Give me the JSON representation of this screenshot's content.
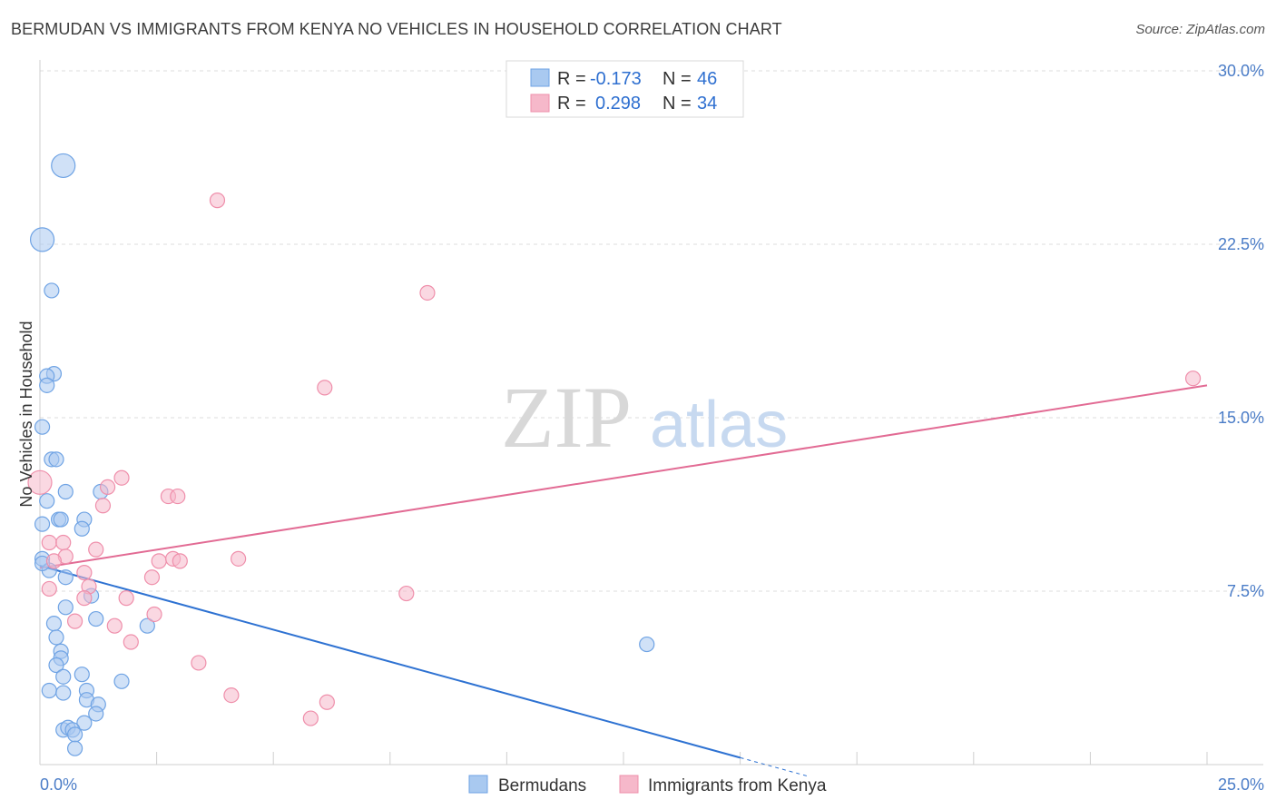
{
  "header": {
    "title": "BERMUDAN VS IMMIGRANTS FROM KENYA NO VEHICLES IN HOUSEHOLD CORRELATION CHART",
    "source": "Source: ZipAtlas.com"
  },
  "watermark": {
    "zip": "ZIP",
    "atlas": "atlas"
  },
  "legend": {
    "rows": [
      {
        "r_label": "R =",
        "r_value": "-0.173",
        "n_label": "N =",
        "n_value": "46",
        "color": "#a9c9f0"
      },
      {
        "r_label": "R =",
        "r_value": "0.298",
        "n_label": "N =",
        "n_value": "34",
        "color": "#f6b8ca"
      }
    ]
  },
  "bottom_legend": {
    "items": [
      "Bermudans",
      "Immigrants from Kenya"
    ]
  },
  "chart_data": {
    "type": "scatter",
    "title": "BERMUDAN VS IMMIGRANTS FROM KENYA NO VEHICLES IN HOUSEHOLD CORRELATION CHART",
    "ylabel": "No Vehicles in Household",
    "xlabel": "",
    "xlim": [
      0,
      25
    ],
    "ylim": [
      0,
      30
    ],
    "x_tick_labels": [
      "0.0%",
      "25.0%"
    ],
    "y_ticks": [
      7.5,
      15.0,
      22.5,
      30.0
    ],
    "y_tick_labels": [
      "7.5%",
      "15.0%",
      "22.5%",
      "30.0%"
    ],
    "grid": true,
    "legend_placement": "top-center",
    "series": [
      {
        "name": "Bermudans",
        "color": "#6fa3e4",
        "fill": "#a9c9f0",
        "line_color": "#2e72d2",
        "trend": {
          "x": [
            0,
            15.0
          ],
          "y": [
            8.6,
            0.3
          ]
        },
        "points": [
          [
            0.5,
            25.9
          ],
          [
            0.05,
            22.7
          ],
          [
            0.25,
            20.5
          ],
          [
            0.3,
            16.9
          ],
          [
            0.15,
            16.8
          ],
          [
            0.15,
            16.4
          ],
          [
            0.05,
            14.6
          ],
          [
            0.25,
            13.2
          ],
          [
            0.35,
            13.2
          ],
          [
            0.15,
            11.4
          ],
          [
            0.55,
            11.8
          ],
          [
            1.3,
            11.8
          ],
          [
            0.05,
            10.4
          ],
          [
            0.4,
            10.6
          ],
          [
            0.45,
            10.6
          ],
          [
            0.95,
            10.6
          ],
          [
            0.9,
            10.2
          ],
          [
            0.05,
            8.9
          ],
          [
            0.2,
            8.4
          ],
          [
            1.1,
            7.3
          ],
          [
            0.55,
            8.1
          ],
          [
            0.55,
            6.8
          ],
          [
            1.2,
            6.3
          ],
          [
            0.3,
            6.1
          ],
          [
            2.3,
            6.0
          ],
          [
            0.35,
            5.5
          ],
          [
            0.45,
            4.9
          ],
          [
            0.45,
            4.6
          ],
          [
            0.35,
            4.3
          ],
          [
            0.5,
            3.8
          ],
          [
            0.9,
            3.9
          ],
          [
            1.75,
            3.6
          ],
          [
            0.2,
            3.2
          ],
          [
            0.5,
            3.1
          ],
          [
            1.0,
            3.2
          ],
          [
            1.0,
            2.8
          ],
          [
            1.25,
            2.6
          ],
          [
            1.2,
            2.2
          ],
          [
            0.95,
            1.8
          ],
          [
            0.5,
            1.5
          ],
          [
            0.6,
            1.6
          ],
          [
            0.7,
            1.5
          ],
          [
            0.75,
            1.3
          ],
          [
            0.75,
            0.7
          ],
          [
            13.0,
            5.2
          ],
          [
            0.05,
            8.7
          ]
        ]
      },
      {
        "name": "Immigrants from Kenya",
        "color": "#ef8fab",
        "fill": "#f6b8ca",
        "line_color": "#e26b94",
        "trend": {
          "x": [
            0,
            25
          ],
          "y": [
            8.5,
            16.4
          ]
        },
        "points": [
          [
            3.8,
            24.4
          ],
          [
            8.3,
            20.4
          ],
          [
            6.1,
            16.3
          ],
          [
            24.7,
            16.7
          ],
          [
            0.0,
            12.2
          ],
          [
            1.75,
            12.4
          ],
          [
            1.45,
            12.0
          ],
          [
            2.75,
            11.6
          ],
          [
            2.95,
            11.6
          ],
          [
            1.35,
            11.2
          ],
          [
            0.2,
            9.6
          ],
          [
            0.5,
            9.6
          ],
          [
            1.2,
            9.3
          ],
          [
            0.55,
            9.0
          ],
          [
            0.3,
            8.8
          ],
          [
            2.55,
            8.8
          ],
          [
            2.85,
            8.9
          ],
          [
            3.0,
            8.8
          ],
          [
            4.25,
            8.9
          ],
          [
            0.95,
            8.3
          ],
          [
            2.4,
            8.1
          ],
          [
            1.05,
            7.7
          ],
          [
            7.85,
            7.4
          ],
          [
            1.85,
            7.2
          ],
          [
            0.95,
            7.2
          ],
          [
            2.45,
            6.5
          ],
          [
            0.75,
            6.2
          ],
          [
            1.6,
            6.0
          ],
          [
            1.95,
            5.3
          ],
          [
            3.4,
            4.4
          ],
          [
            4.1,
            3.0
          ],
          [
            6.15,
            2.7
          ],
          [
            5.8,
            2.0
          ],
          [
            0.2,
            7.6
          ]
        ]
      }
    ]
  }
}
